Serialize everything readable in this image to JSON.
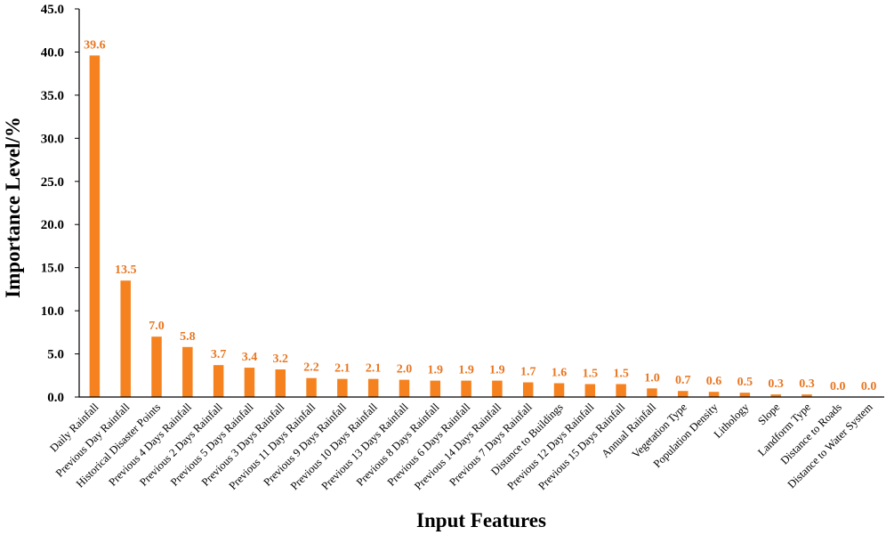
{
  "chart_data": {
    "type": "bar",
    "xlabel": "Input Features",
    "ylabel": "Importance Level/%",
    "ylim": [
      0,
      45
    ],
    "ytick_step": 5,
    "grid": false,
    "bar_color": "#f5821f",
    "label_color": "#e87722",
    "categories": [
      "Daily Rainfall",
      "Previous Day Rainfall",
      "Historical Disaster Points",
      "Previous 4 Days Rainfall",
      "Previous 2 Days Rainfall",
      "Previous 5 Days Rainfall",
      "Previous 3 Days Rainfall",
      "Previous 11 Days Rainfall",
      "Previous 9 Days Rainfall",
      "Previous 10 Days Rainfall",
      "Previous 13 Days Rainfall",
      "Previous 8 Days Rainfall",
      "Previous 6 Days Rainfall",
      "Previous 14 Days Rainfall",
      "Previous 7 Days Rainfall",
      "Distance to Buildings",
      "Previous 12 Days Rainfall",
      "Previous 15 Days Rainfall",
      "Annual Rainfall",
      "Vegetation Type",
      "Population Density",
      "Lithology",
      "Slope",
      "Landform Type",
      "Distance to Roads",
      "Distance to Water System"
    ],
    "values": [
      39.6,
      13.5,
      7.0,
      5.8,
      3.7,
      3.4,
      3.2,
      2.2,
      2.1,
      2.1,
      2.0,
      1.9,
      1.9,
      1.9,
      1.7,
      1.6,
      1.5,
      1.5,
      1.0,
      0.7,
      0.6,
      0.5,
      0.3,
      0.3,
      0.0,
      0.0
    ]
  }
}
